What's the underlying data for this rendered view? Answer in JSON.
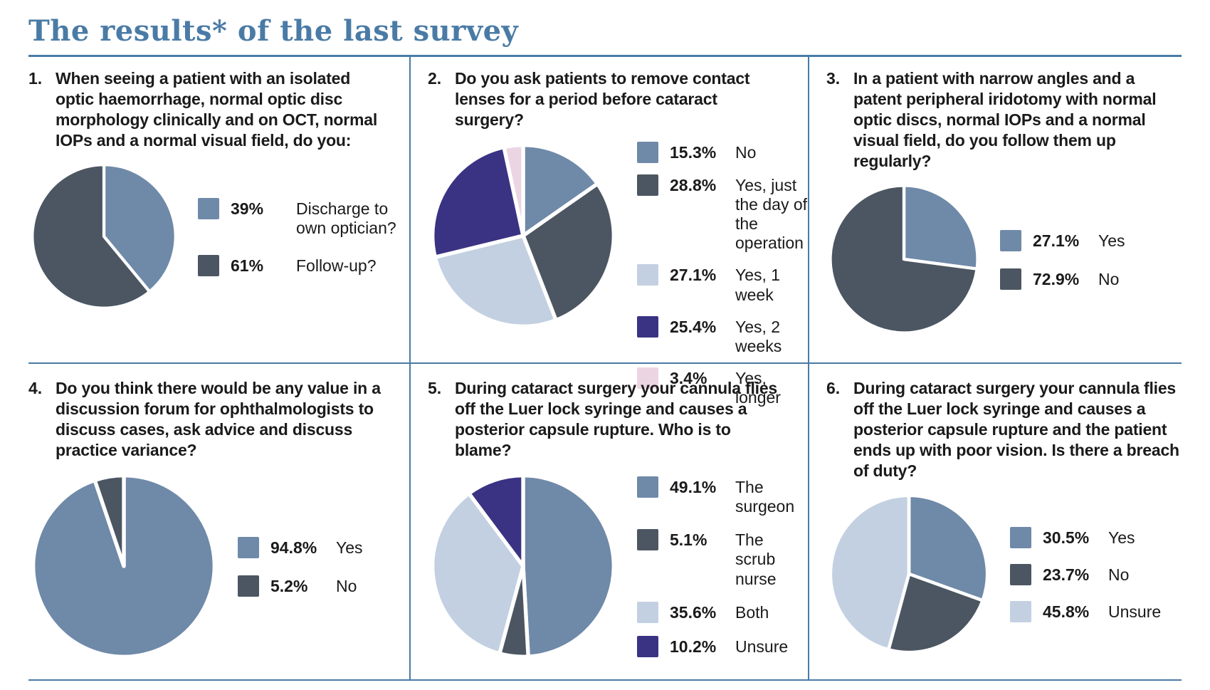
{
  "page": {
    "title": "The results* of the last survey"
  },
  "colors": {
    "accent": "#4a7ba6",
    "slate": "#6f89a8",
    "dark": "#4c5662",
    "light": "#c3d0e1",
    "navy": "#3a3383",
    "pink": "#ecd5e2",
    "pie_stroke": "#ffffff",
    "text": "#1a1a1a"
  },
  "chart_data": [
    {
      "type": "pie",
      "number": "1.",
      "question": "When seeing a patient with an isolated optic haemorrhage, normal optic disc morphology clinically and on OCT, normal IOPs and a normal visual field, do you:",
      "slices": [
        {
          "pct_label": "39%",
          "value": 39,
          "label": "Discharge to own optician?",
          "color": "slate"
        },
        {
          "pct_label": "61%",
          "value": 61,
          "label": "Follow-up?",
          "color": "dark"
        }
      ],
      "start_angle": "top",
      "direction": "clockwise",
      "legend_position": "right",
      "legend_align": "center",
      "legend_gap": 26,
      "label_width": 175,
      "size": 212
    },
    {
      "type": "pie",
      "number": "2.",
      "question": "Do you ask patients to remove contact lenses for a period before cataract surgery?",
      "slices": [
        {
          "pct_label": "15.3%",
          "value": 15.3,
          "label": "No",
          "color": "slate"
        },
        {
          "pct_label": "28.8%",
          "value": 28.8,
          "label": "Yes, just the day of the operation",
          "color": "dark"
        },
        {
          "pct_label": "27.1%",
          "value": 27.1,
          "label": "Yes, 1 week",
          "color": "light"
        },
        {
          "pct_label": "25.4%",
          "value": 25.4,
          "label": "Yes, 2 weeks",
          "color": "navy"
        },
        {
          "pct_label": "3.4%",
          "value": 3.4,
          "label": "Yes, longer",
          "color": "pink"
        }
      ],
      "start_angle": "top",
      "direction": "clockwise",
      "legend_position": "right",
      "legend_align": "top",
      "legend_gap": 18,
      "label_width": 142,
      "size": 268
    },
    {
      "type": "pie",
      "number": "3.",
      "question": "In a patient with narrow angles and a patent peripheral iridotomy with normal optic discs, normal IOPs and a normal visual field, do you follow them up regularly?",
      "slices": [
        {
          "pct_label": "27.1%",
          "value": 27.1,
          "label": "Yes",
          "color": "slate"
        },
        {
          "pct_label": "72.9%",
          "value": 72.9,
          "label": "No",
          "color": "dark"
        }
      ],
      "start_angle": "top",
      "direction": "clockwise",
      "legend_position": "right",
      "legend_align": "center",
      "legend_gap": 26,
      "size": 218
    },
    {
      "type": "pie",
      "number": "4.",
      "question": "Do you think there would be any value in a discussion forum for ophthalmologists to discuss cases, ask advice and discuss practice variance?",
      "slices": [
        {
          "pct_label": "94.8%",
          "value": 94.8,
          "label": "Yes",
          "color": "slate"
        },
        {
          "pct_label": "5.2%",
          "value": 5.2,
          "label": "No",
          "color": "dark"
        }
      ],
      "start_angle": "top",
      "direction": "clockwise",
      "legend_position": "right",
      "legend_align": "center",
      "legend_gap": 26,
      "size": 268
    },
    {
      "type": "pie",
      "number": "5.",
      "question": "During cataract surgery your cannula flies off the Luer lock syringe and causes a posterior capsule rupture. Who is to blame?",
      "slices": [
        {
          "pct_label": "49.1%",
          "value": 49.1,
          "label": "The surgeon",
          "color": "slate"
        },
        {
          "pct_label": "5.1%",
          "value": 5.1,
          "label": "The scrub nurse",
          "color": "dark"
        },
        {
          "pct_label": "35.6%",
          "value": 35.6,
          "label": "Both",
          "color": "light"
        },
        {
          "pct_label": "10.2%",
          "value": 10.2,
          "label": "Unsure",
          "color": "navy"
        }
      ],
      "start_angle": "top",
      "direction": "clockwise",
      "legend_position": "right",
      "legend_align": "center",
      "legend_gap": 20,
      "label_width": 122,
      "size": 268
    },
    {
      "type": "pie",
      "number": "6.",
      "question": "During cataract surgery your cannula flies off the Luer lock syringe and causes a posterior capsule rupture and the patient ends up with poor vision. Is there a breach of duty?",
      "slices": [
        {
          "pct_label": "30.5%",
          "value": 30.5,
          "label": "Yes",
          "color": "slate"
        },
        {
          "pct_label": "23.7%",
          "value": 23.7,
          "label": "No",
          "color": "dark"
        },
        {
          "pct_label": "45.8%",
          "value": 45.8,
          "label": "Unsure",
          "color": "light"
        }
      ],
      "start_angle": "top",
      "direction": "clockwise",
      "legend_position": "right",
      "legend_align": "center",
      "legend_gap": 24,
      "size": 232
    }
  ]
}
